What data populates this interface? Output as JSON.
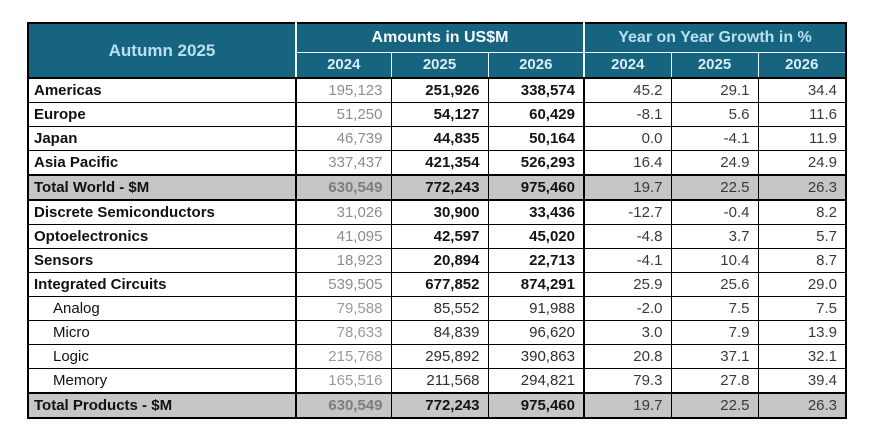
{
  "title": "Autumn 2025",
  "header": {
    "amounts_title": "Amounts in US$M",
    "growth_title": "Year on Year Growth in %",
    "years": [
      "2024",
      "2025",
      "2026"
    ]
  },
  "colors": {
    "header_bg": "#176480",
    "header_text_white": "#f6fcfe",
    "header_text_cyan": "#b9e0ee",
    "total_row_bg": "#c6c6c6",
    "muted_2024_text": "#8c8c8c",
    "border": "#000000"
  },
  "table": {
    "rows": [
      {
        "label": "Americas",
        "style": "main",
        "amounts": [
          "195,123",
          "251,926",
          "338,574"
        ],
        "growth": [
          "45.2",
          "29.1",
          "34.4"
        ]
      },
      {
        "label": "Europe",
        "style": "main",
        "amounts": [
          "51,250",
          "54,127",
          "60,429"
        ],
        "growth": [
          "-8.1",
          "5.6",
          "11.6"
        ]
      },
      {
        "label": "Japan",
        "style": "main",
        "amounts": [
          "46,739",
          "44,835",
          "50,164"
        ],
        "growth": [
          "0.0",
          "-4.1",
          "11.9"
        ]
      },
      {
        "label": "Asia Pacific",
        "style": "main",
        "amounts": [
          "337,437",
          "421,354",
          "526,293"
        ],
        "growth": [
          "16.4",
          "24.9",
          "24.9"
        ]
      },
      {
        "label": "Total World - $M",
        "style": "total",
        "amounts": [
          "630,549",
          "772,243",
          "975,460"
        ],
        "growth": [
          "19.7",
          "22.5",
          "26.3"
        ]
      },
      {
        "label": "Discrete Semiconductors",
        "style": "main",
        "amounts": [
          "31,026",
          "30,900",
          "33,436"
        ],
        "growth": [
          "-12.7",
          "-0.4",
          "8.2"
        ]
      },
      {
        "label": "Optoelectronics",
        "style": "main",
        "amounts": [
          "41,095",
          "42,597",
          "45,020"
        ],
        "growth": [
          "-4.8",
          "3.7",
          "5.7"
        ]
      },
      {
        "label": "Sensors",
        "style": "main",
        "amounts": [
          "18,923",
          "20,894",
          "22,713"
        ],
        "growth": [
          "-4.1",
          "10.4",
          "8.7"
        ]
      },
      {
        "label": "Integrated Circuits",
        "style": "main",
        "amounts": [
          "539,505",
          "677,852",
          "874,291"
        ],
        "growth": [
          "25.9",
          "25.6",
          "29.0"
        ]
      },
      {
        "label": "Analog",
        "style": "sub",
        "amounts": [
          "79,588",
          "85,552",
          "91,988"
        ],
        "growth": [
          "-2.0",
          "7.5",
          "7.5"
        ]
      },
      {
        "label": "Micro",
        "style": "sub",
        "amounts": [
          "78,633",
          "84,839",
          "96,620"
        ],
        "growth": [
          "3.0",
          "7.9",
          "13.9"
        ]
      },
      {
        "label": "Logic",
        "style": "sub",
        "amounts": [
          "215,768",
          "295,892",
          "390,863"
        ],
        "growth": [
          "20.8",
          "37.1",
          "32.1"
        ]
      },
      {
        "label": "Memory",
        "style": "sub",
        "amounts": [
          "165,516",
          "211,568",
          "294,821"
        ],
        "growth": [
          "79.3",
          "27.8",
          "39.4"
        ]
      },
      {
        "label": "Total Products - $M",
        "style": "total",
        "amounts": [
          "630,549",
          "772,243",
          "975,460"
        ],
        "growth": [
          "19.7",
          "22.5",
          "26.3"
        ]
      }
    ]
  },
  "chart_data": {
    "type": "table",
    "title": "Autumn 2025",
    "column_groups": [
      "Amounts in US$M",
      "Year on Year Growth in %"
    ],
    "columns": [
      "Amounts 2024",
      "Amounts 2025",
      "Amounts 2026",
      "Growth % 2024",
      "Growth % 2025",
      "Growth % 2026"
    ],
    "rows": [
      {
        "label": "Americas",
        "amounts_usm": [
          195123,
          251926,
          338574
        ],
        "growth_pct": [
          45.2,
          29.1,
          34.4
        ]
      },
      {
        "label": "Europe",
        "amounts_usm": [
          51250,
          54127,
          60429
        ],
        "growth_pct": [
          -8.1,
          5.6,
          11.6
        ]
      },
      {
        "label": "Japan",
        "amounts_usm": [
          46739,
          44835,
          50164
        ],
        "growth_pct": [
          0.0,
          -4.1,
          11.9
        ]
      },
      {
        "label": "Asia Pacific",
        "amounts_usm": [
          337437,
          421354,
          526293
        ],
        "growth_pct": [
          16.4,
          24.9,
          24.9
        ]
      },
      {
        "label": "Total World - $M",
        "amounts_usm": [
          630549,
          772243,
          975460
        ],
        "growth_pct": [
          19.7,
          22.5,
          26.3
        ]
      },
      {
        "label": "Discrete Semiconductors",
        "amounts_usm": [
          31026,
          30900,
          33436
        ],
        "growth_pct": [
          -12.7,
          -0.4,
          8.2
        ]
      },
      {
        "label": "Optoelectronics",
        "amounts_usm": [
          41095,
          42597,
          45020
        ],
        "growth_pct": [
          -4.8,
          3.7,
          5.7
        ]
      },
      {
        "label": "Sensors",
        "amounts_usm": [
          18923,
          20894,
          22713
        ],
        "growth_pct": [
          -4.1,
          10.4,
          8.7
        ]
      },
      {
        "label": "Integrated Circuits",
        "amounts_usm": [
          539505,
          677852,
          874291
        ],
        "growth_pct": [
          25.9,
          25.6,
          29.0
        ]
      },
      {
        "label": "Analog",
        "amounts_usm": [
          79588,
          85552,
          91988
        ],
        "growth_pct": [
          -2.0,
          7.5,
          7.5
        ]
      },
      {
        "label": "Micro",
        "amounts_usm": [
          78633,
          84839,
          96620
        ],
        "growth_pct": [
          3.0,
          7.9,
          13.9
        ]
      },
      {
        "label": "Logic",
        "amounts_usm": [
          215768,
          295892,
          390863
        ],
        "growth_pct": [
          20.8,
          37.1,
          32.1
        ]
      },
      {
        "label": "Memory",
        "amounts_usm": [
          165516,
          211568,
          294821
        ],
        "growth_pct": [
          79.3,
          27.8,
          39.4
        ]
      },
      {
        "label": "Total Products - $M",
        "amounts_usm": [
          630549,
          772243,
          975460
        ],
        "growth_pct": [
          19.7,
          22.5,
          26.3
        ]
      }
    ]
  }
}
